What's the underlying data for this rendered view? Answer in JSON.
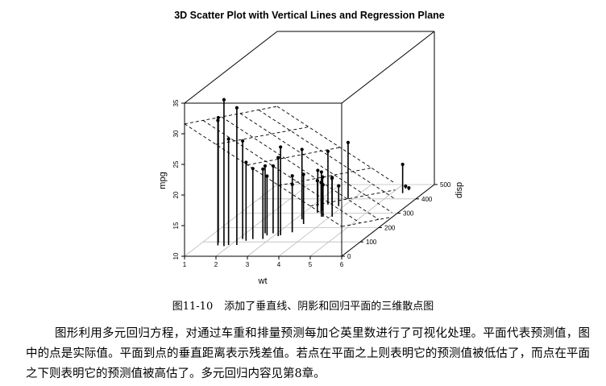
{
  "chart_data": {
    "type": "scatter3d",
    "title": "3D Scatter Plot with Vertical Lines and Regression Plane",
    "xlabel": "wt",
    "ylabel": "disp",
    "zlabel": "mpg",
    "x_ticks": [
      "1",
      "2",
      "3",
      "4",
      "5",
      "6"
    ],
    "y_ticks": [
      "0",
      "100",
      "200",
      "300",
      "400",
      "500"
    ],
    "z_ticks": [
      "10",
      "15",
      "20",
      "25",
      "30",
      "35"
    ],
    "xlim": [
      1,
      6
    ],
    "ylim": [
      0,
      500
    ],
    "zlim": [
      10,
      35
    ],
    "grid": true,
    "points": [
      {
        "x": 2.62,
        "y": 160,
        "z": 21.0
      },
      {
        "x": 2.875,
        "y": 160,
        "z": 21.0
      },
      {
        "x": 2.32,
        "y": 108,
        "z": 22.8
      },
      {
        "x": 3.215,
        "y": 258,
        "z": 21.4
      },
      {
        "x": 3.44,
        "y": 360,
        "z": 18.7
      },
      {
        "x": 3.46,
        "y": 225,
        "z": 18.1
      },
      {
        "x": 3.57,
        "y": 360,
        "z": 14.3
      },
      {
        "x": 3.19,
        "y": 146.7,
        "z": 24.4
      },
      {
        "x": 3.15,
        "y": 140.8,
        "z": 22.8
      },
      {
        "x": 3.44,
        "y": 167.6,
        "z": 19.2
      },
      {
        "x": 3.44,
        "y": 167.6,
        "z": 17.8
      },
      {
        "x": 4.07,
        "y": 275.8,
        "z": 16.4
      },
      {
        "x": 3.73,
        "y": 275.8,
        "z": 17.3
      },
      {
        "x": 3.78,
        "y": 275.8,
        "z": 15.2
      },
      {
        "x": 5.25,
        "y": 472,
        "z": 10.4
      },
      {
        "x": 5.424,
        "y": 460,
        "z": 10.4
      },
      {
        "x": 5.345,
        "y": 440,
        "z": 14.7
      },
      {
        "x": 2.2,
        "y": 78.7,
        "z": 32.4
      },
      {
        "x": 1.615,
        "y": 75.7,
        "z": 30.4
      },
      {
        "x": 1.835,
        "y": 71.1,
        "z": 33.9
      },
      {
        "x": 2.465,
        "y": 120.1,
        "z": 21.5
      },
      {
        "x": 3.52,
        "y": 318,
        "z": 15.5
      },
      {
        "x": 3.435,
        "y": 304,
        "z": 15.2
      },
      {
        "x": 3.84,
        "y": 350,
        "z": 13.3
      },
      {
        "x": 3.845,
        "y": 400,
        "z": 19.2
      },
      {
        "x": 1.935,
        "y": 79,
        "z": 27.3
      },
      {
        "x": 2.14,
        "y": 120.3,
        "z": 26.0
      },
      {
        "x": 1.513,
        "y": 95.1,
        "z": 30.4
      },
      {
        "x": 3.17,
        "y": 351,
        "z": 15.8
      },
      {
        "x": 2.77,
        "y": 145,
        "z": 19.7
      },
      {
        "x": 3.57,
        "y": 301,
        "z": 15.0
      },
      {
        "x": 2.78,
        "y": 121,
        "z": 21.4
      }
    ],
    "regression_plane": {
      "intercept": 34.96,
      "coef_x": -3.35,
      "coef_y": -0.0177
    }
  },
  "caption": {
    "number": "图11-10",
    "text": "添加了垂直线、阴影和回归平面的三维散点图"
  },
  "body_text": "图形利用多元回归方程，对通过车重和排量预测每加仑英里数进行了可视化处理。平面代表预测值，图中的点是实际值。平面到点的垂直距离表示残差值。若点在平面之上则表明它的预测值被低估了，而点在平面之下则表明它的预测值被高估了。多元回归内容见第8章。"
}
